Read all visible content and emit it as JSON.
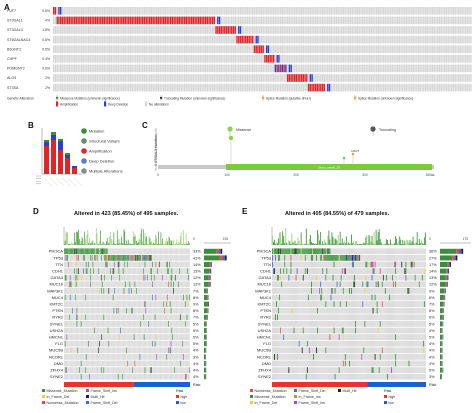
{
  "panels": {
    "a": {
      "letter": "A",
      "genes": [
        "FUT7",
        "ST3GAL1",
        "ST3GAL3",
        "ST6GALNAC4",
        "B3GNT2",
        "CHPF",
        "POMGNT2",
        "ALG5",
        "ST3SA"
      ],
      "percents": [
        "0.6%",
        "4%",
        "1.8%",
        "0.8%",
        "0.5%",
        "0.4%",
        "0.6%",
        "2%",
        "2%"
      ],
      "legend_header": "Genetic Alteration",
      "legend_row1": [
        "Missense Mutation (unknown significance)",
        "Truncating Mutation (unknown significance)",
        "Splice Mutation (putative driver)",
        "Splice Mutation (unknown significance)"
      ],
      "legend_row2": [
        "Amplification",
        "Deep Deletion",
        "No alterations"
      ]
    },
    "b": {
      "letter": "B",
      "legend": [
        "Mutation",
        "Structural Variant",
        "Amplification",
        "Deep Deletion",
        "Multiple Alterations"
      ]
    },
    "c": {
      "letter": "C",
      "ylabel": "# ST3GAL1 Mutations",
      "legend": [
        "Missense",
        "Truncating"
      ],
      "domain_label": "Glyco_transf_29",
      "ticks": [
        "0",
        "100",
        "200",
        "300",
        "340aa"
      ],
      "site_label": "A302T"
    },
    "d": {
      "letter": "D",
      "title": "Altered in 423 (85.45%) of 495 samples.",
      "top_ticks": [
        "0",
        "225"
      ],
      "genes": [
        "PIK3CA",
        "TP53",
        "TTN",
        "CDH1",
        "GATA3",
        "MUC16",
        "MAP3K1",
        "MUC4",
        "KMT2C",
        "PTEN",
        "RYR2",
        "SYNE1",
        "USH2A",
        "HMCN1",
        "FLG",
        "MUC5B",
        "NCOR1",
        "DMD",
        "ZFHX4",
        "SYNE2"
      ],
      "percents": [
        "33%",
        "41%",
        "14%",
        "13%",
        "12%",
        "12%",
        "7%",
        "8%",
        "9%",
        "8%",
        "7%",
        "5%",
        "5%",
        "5%",
        "5%",
        "4%",
        "3%",
        "4%",
        "4%",
        "4%"
      ],
      "risk_label": "Risk",
      "legend": [
        "Missense_Mutation",
        "In_Frame_Del",
        "Nonsense_Mutation",
        "Frame_Shift_Ins",
        "Multi_Hit",
        "Frame_Shift_Del"
      ],
      "risk_legend_title": "Risk",
      "risk_levels": [
        "high",
        "low"
      ]
    },
    "e": {
      "letter": "E",
      "title": "Altered in 405 (84.55%) of 479 samples.",
      "top_ticks": [
        "0",
        "175"
      ],
      "genes": [
        "PIK3CA",
        "TP53",
        "TTN",
        "CDH1",
        "GATA3",
        "MUC16",
        "MAP3K1",
        "MUC4",
        "KMT2C",
        "PTEN",
        "RYR2",
        "SYNE1",
        "USH2A",
        "HMCN1",
        "FLG",
        "MUC5B",
        "NCOR1",
        "DMD",
        "ZFHX4",
        "SYNE2"
      ],
      "percents": [
        "36%",
        "27%",
        "17%",
        "14%",
        "13%",
        "12%",
        "9%",
        "8%",
        "7%",
        "6%",
        "6%",
        "5%",
        "4%",
        "5%",
        "4%",
        "4%",
        "4%",
        "4%",
        "5%",
        "3%"
      ],
      "risk_label": "Risk",
      "legend": [
        "Nonsense_Mutation",
        "Missense_Mutation",
        "In_Frame_Del",
        "Frame_Shift_Del",
        "In_Frame_Ins",
        "Frame_Shift_Ins",
        "Multi_Hit"
      ],
      "risk_legend_title": "Risk",
      "risk_levels": [
        "high",
        "low"
      ]
    }
  },
  "colors": {
    "missense": "#3a8f3a",
    "truncating": "#2f2f2f",
    "amplification": "#e0242a",
    "deep_deletion": "#2a3fd0",
    "no_alt": "#d6d6d6",
    "nonsense": "#e94b4b",
    "frameshift_del": "#3b6bd6",
    "frameshift_ins": "#9b4fc4",
    "inframe_del": "#f2c94c",
    "inframe_ins": "#c29152",
    "multi_hit": "#222222",
    "risk_high": "#e8332f",
    "risk_low": "#1f5fd6",
    "mut_green": "#8fd14f"
  }
}
